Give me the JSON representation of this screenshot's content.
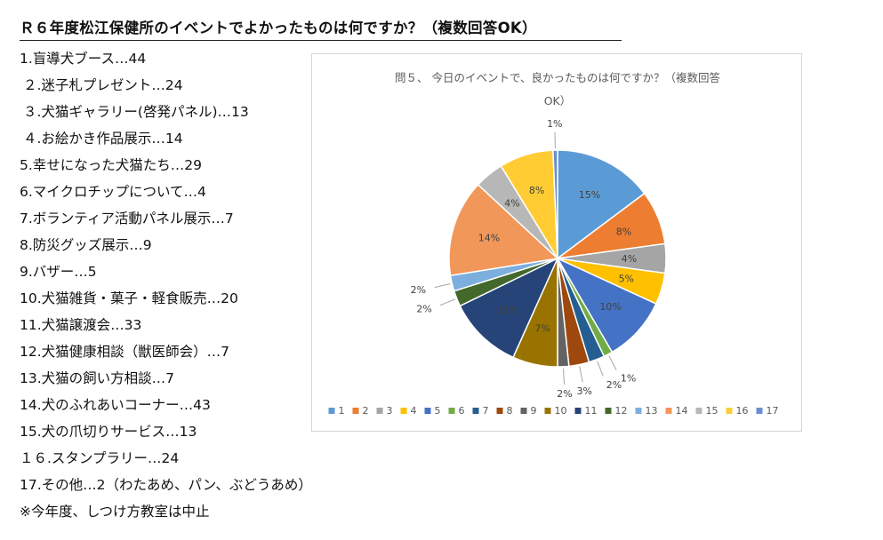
{
  "header": {
    "title": "Ｒ６年度松江保健所のイベントでよかったものは何ですか？（複数回答OK）"
  },
  "items": [
    "1.盲導犬ブース…44",
    "２.迷子札プレゼント…24",
    "３.犬猫ギャラリー(啓発パネル)…13",
    "４.お絵かき作品展示…14",
    "5.幸せになった犬猫たち…29",
    "6.マイクロチップについて…4",
    "7.ボランティア活動パネル展示…7",
    "8.防災グッズ展示…9",
    "9.バザー…5",
    "10.犬猫雑貨・菓子・軽食販売…20",
    "11.犬猫譲渡会…33",
    "12.犬猫健康相談（獣医師会）…7",
    "13.犬猫の飼い方相談…7",
    "14.犬のふれあいコーナー…43",
    "15.犬の爪切りサービス…13",
    "１６.スタンプラリー…24",
    "17.その他…2（わたあめ、パン、ぶどうあめ）",
    "※今年度、しつけ方教室は中止"
  ],
  "chart_data": {
    "type": "pie",
    "title_lines": [
      "問５、 今日のイベントで、良かったものは何ですか？（複数回答",
      "OK）"
    ],
    "categories": [
      "1",
      "2",
      "3",
      "4",
      "5",
      "6",
      "7",
      "8",
      "9",
      "10",
      "11",
      "12",
      "13",
      "14",
      "15",
      "16",
      "17"
    ],
    "values": [
      44,
      24,
      13,
      14,
      29,
      4,
      7,
      9,
      5,
      20,
      33,
      7,
      7,
      43,
      13,
      24,
      2
    ],
    "labels": [
      "15%",
      "8%",
      "4%",
      "5%",
      "10%",
      "1%",
      "2%",
      "3%",
      "2%",
      "7%",
      "11%",
      "2%",
      "2%",
      "14%",
      "4%",
      "8%",
      "1%"
    ],
    "colors": [
      "#5B9BD5",
      "#ED7D31",
      "#A5A5A5",
      "#FFC000",
      "#4472C4",
      "#70AD47",
      "#255E91",
      "#9E480E",
      "#636363",
      "#997300",
      "#264478",
      "#43682B",
      "#7CAFDD",
      "#F1975A",
      "#B7B7B7",
      "#FFCD33",
      "#698ED0"
    ],
    "start_angle_deg": 0,
    "direction": "clockwise",
    "legend_position": "bottom"
  }
}
